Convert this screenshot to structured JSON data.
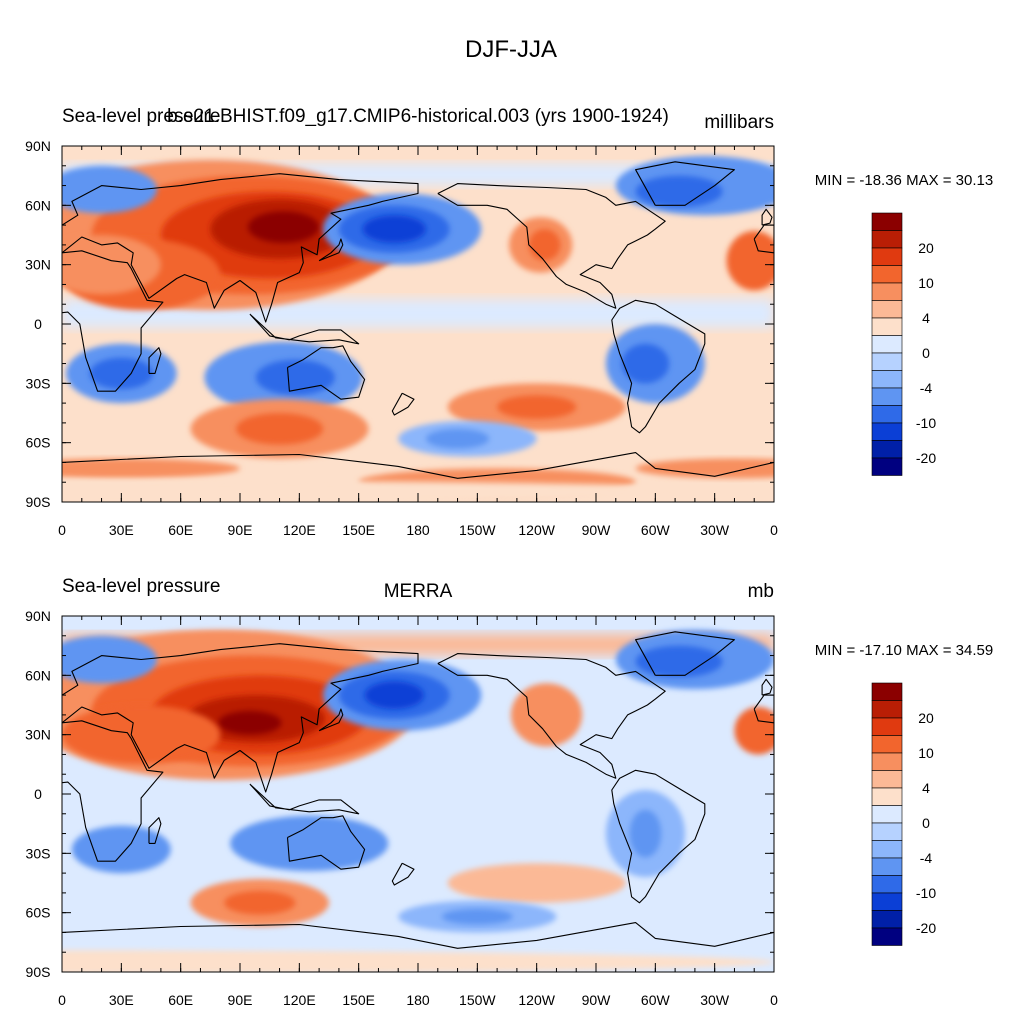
{
  "page": {
    "title": "DJF-JJA"
  },
  "panels": [
    {
      "id": "model",
      "left_title": "Sea-level pressure",
      "center_title": "b.e21.BHIST.f09_g17.CMIP6-historical.003 (yrs 1900-1924)",
      "right_title": "millibars",
      "stats": "MIN = -18.36 MAX =  30.13"
    },
    {
      "id": "obs",
      "left_title": "Sea-level pressure",
      "center_title": "MERRA",
      "right_title": "mb",
      "stats": "MIN = -17.10 MAX =  34.59"
    }
  ],
  "lat_ticks": [
    "90N",
    "60N",
    "30N",
    "0",
    "30S",
    "60S",
    "90S"
  ],
  "lon_ticks": [
    "0",
    "30E",
    "60E",
    "90E",
    "120E",
    "150E",
    "180",
    "150W",
    "120W",
    "90W",
    "60W",
    "30W",
    "0"
  ],
  "colorbar": {
    "labels": [
      "20",
      "10",
      "4",
      "0",
      "-4",
      "-10",
      "-20"
    ],
    "colors": [
      "#8b0000",
      "#b91e05",
      "#e03a10",
      "#f2652d",
      "#f78f5f",
      "#fbb996",
      "#fde0cb",
      "#dceaff",
      "#b6d2ff",
      "#8cb6fb",
      "#5f95f2",
      "#2f6ae8",
      "#0b3fd6",
      "#0020a8",
      "#000080"
    ]
  },
  "colors": {
    "coast": "#000000"
  }
}
